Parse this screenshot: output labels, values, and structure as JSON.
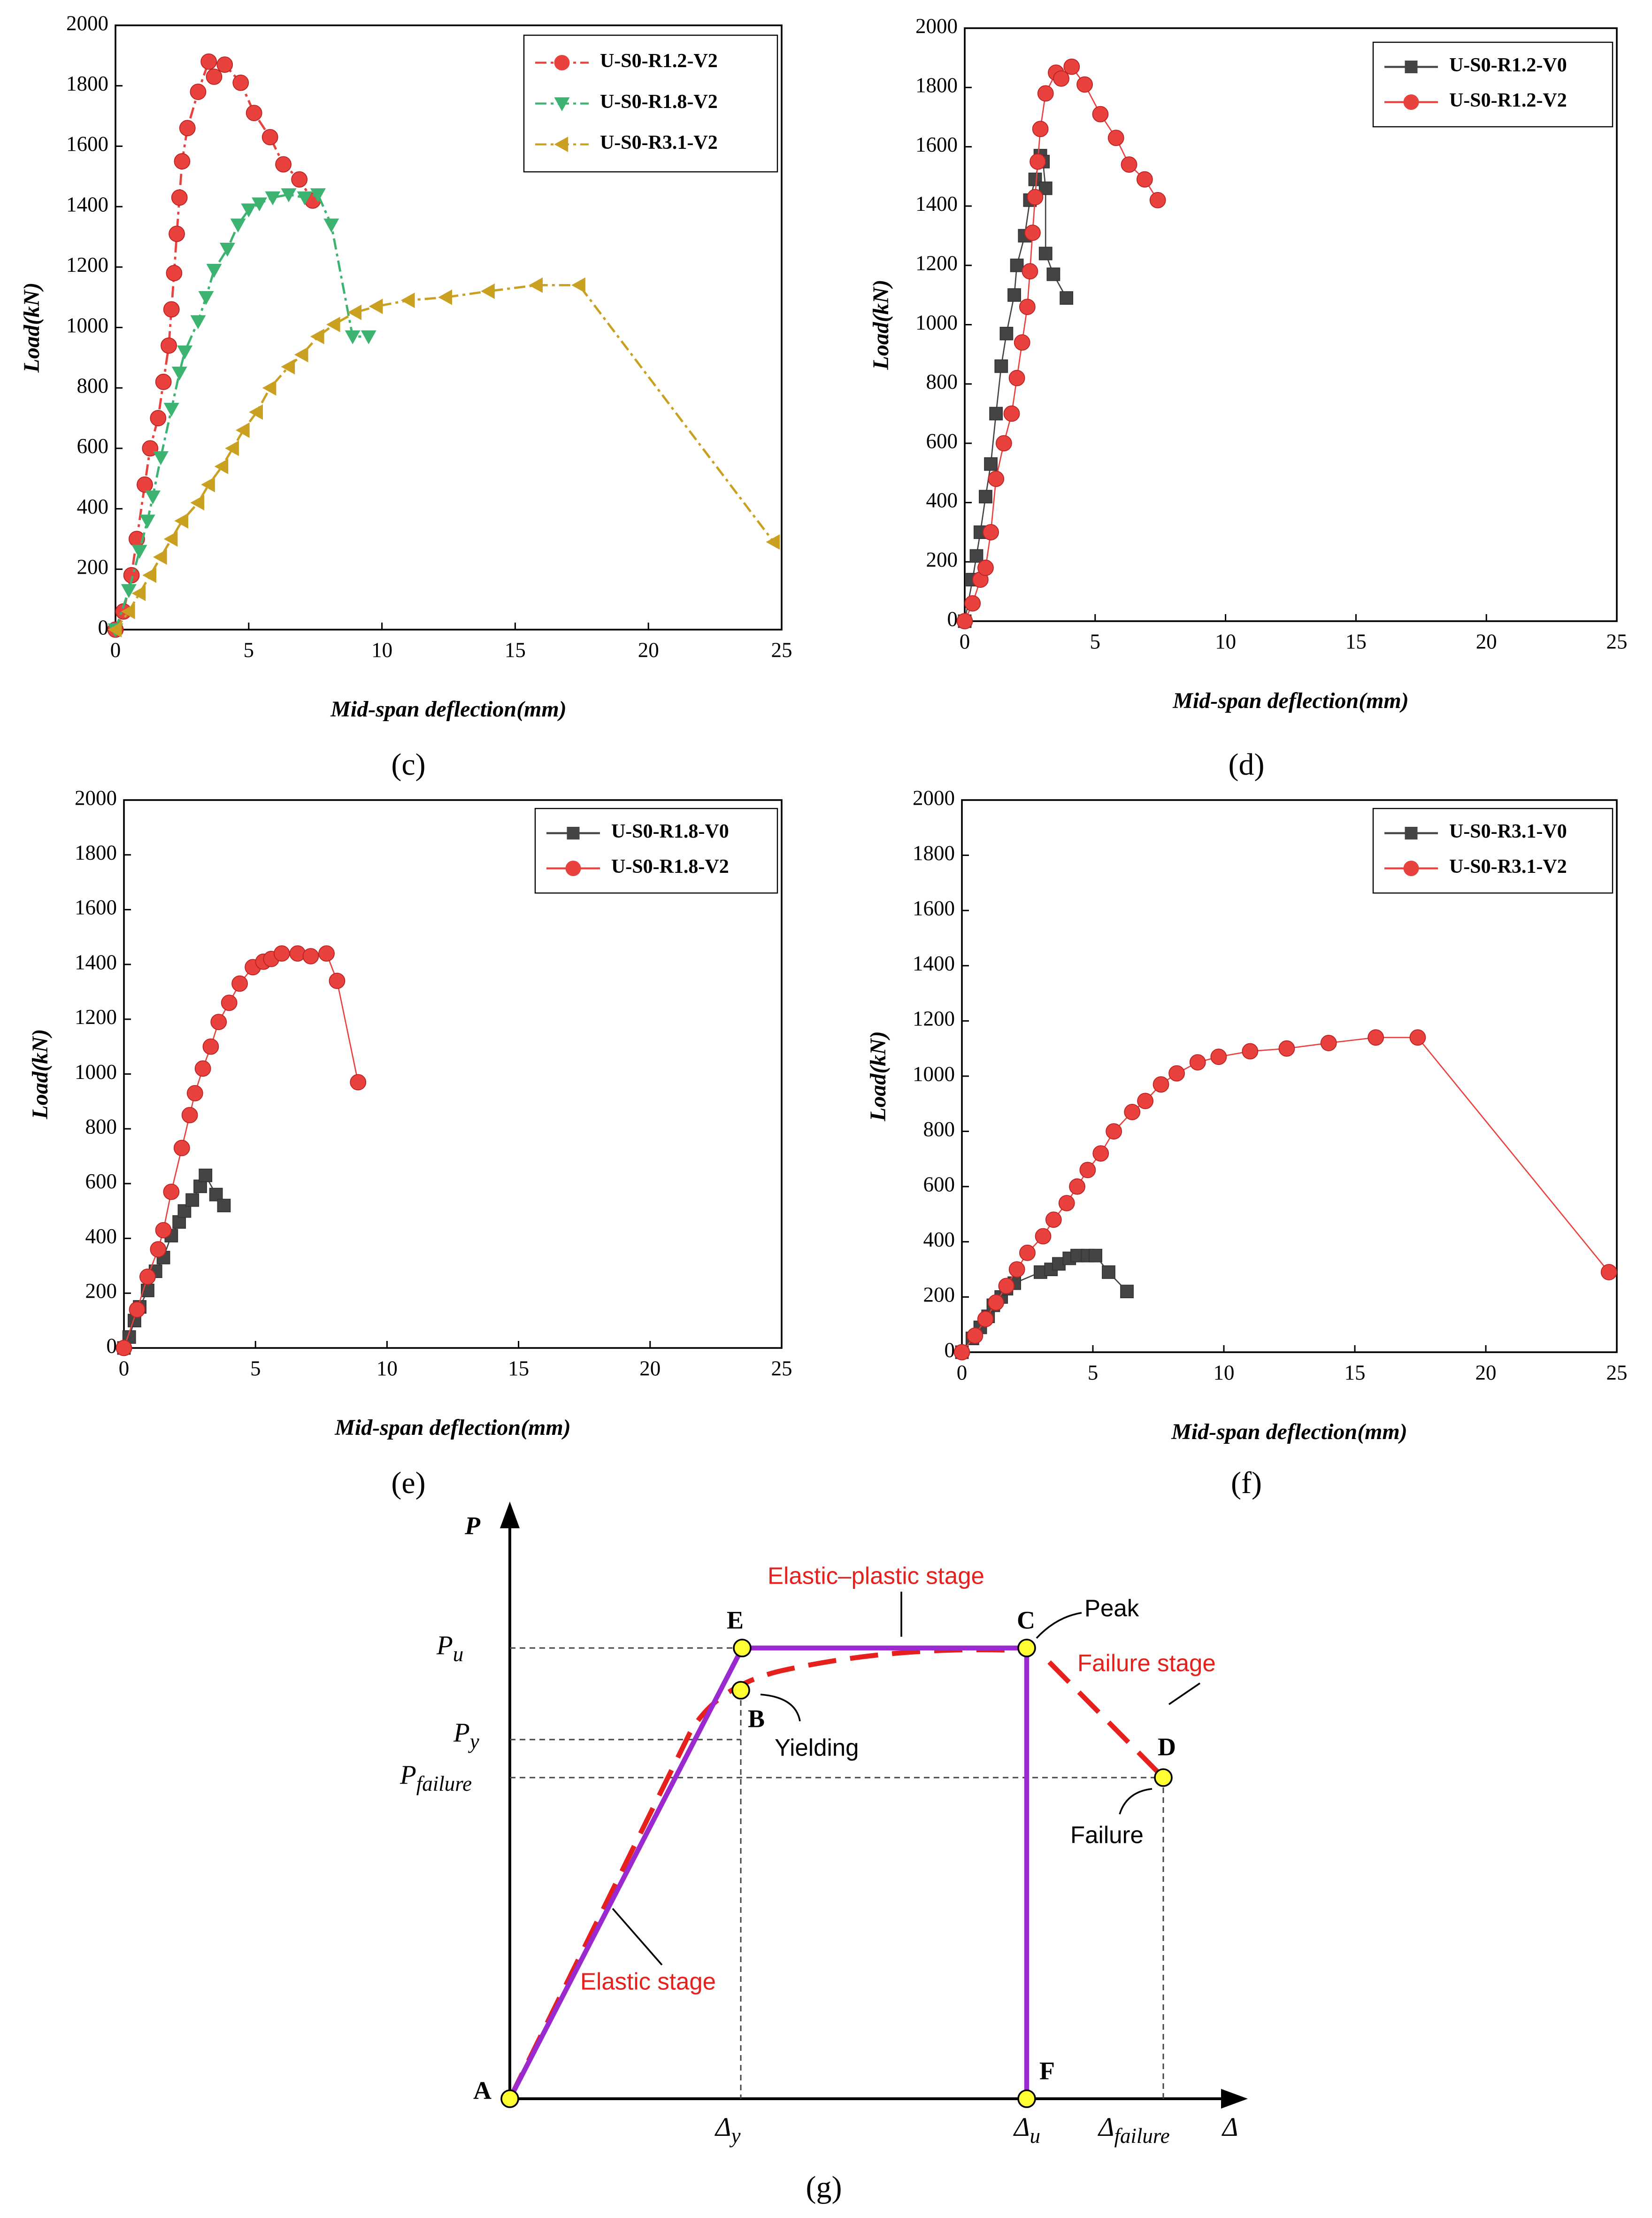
{
  "chart_data": [
    {
      "type": "line",
      "caption": "(c)",
      "xlabel": "Mid-span deflection(mm)",
      "ylabel": "Load(kN)",
      "xlim": [
        0,
        25
      ],
      "xticks": [
        0,
        5,
        10,
        15,
        20,
        25
      ],
      "ylim": [
        0,
        2000
      ],
      "yticks": [
        0,
        200,
        400,
        600,
        800,
        1000,
        1200,
        1400,
        1600,
        1800,
        2000
      ],
      "legend": "upper right",
      "series": [
        {
          "name": "U-S0-R1.2-V2",
          "color": "#e8413e",
          "marker": "circle",
          "linestyle": "dashed",
          "x": [
            0,
            0.3,
            0.6,
            0.8,
            1.1,
            1.3,
            1.6,
            1.8,
            2.0,
            2.1,
            2.2,
            2.3,
            2.4,
            2.5,
            2.7,
            3.1,
            3.5,
            3.7,
            4.1,
            4.7,
            5.2,
            5.8,
            6.3,
            6.9,
            7.4
          ],
          "values": [
            0,
            60,
            180,
            300,
            480,
            600,
            700,
            820,
            940,
            1060,
            1180,
            1310,
            1430,
            1550,
            1660,
            1780,
            1880,
            1830,
            1870,
            1810,
            1710,
            1630,
            1540,
            1490,
            1420
          ]
        },
        {
          "name": "U-S0-R1.8-V2",
          "color": "#3cb371",
          "marker": "triangle-down",
          "linestyle": "dashed",
          "x": [
            0,
            0.5,
            0.9,
            1.2,
            1.4,
            1.7,
            2.1,
            2.4,
            2.6,
            3.1,
            3.4,
            3.7,
            4.2,
            4.6,
            5.0,
            5.4,
            5.9,
            6.5,
            7.1,
            7.6,
            8.1,
            8.9,
            9.5
          ],
          "values": [
            0,
            130,
            260,
            360,
            440,
            570,
            730,
            850,
            920,
            1020,
            1100,
            1190,
            1260,
            1340,
            1390,
            1410,
            1430,
            1440,
            1430,
            1440,
            1340,
            970,
            970
          ]
        },
        {
          "name": "U-S0-R3.1-V2",
          "color": "#c9a020",
          "marker": "triangle-left",
          "linestyle": "dashed",
          "x": [
            0,
            0.5,
            0.9,
            1.3,
            1.7,
            2.1,
            2.5,
            3.1,
            3.5,
            4.0,
            4.4,
            4.8,
            5.3,
            5.8,
            6.5,
            7.0,
            7.6,
            8.2,
            9.0,
            9.8,
            11.0,
            12.4,
            14.0,
            15.8,
            17.4,
            24.7
          ],
          "values": [
            0,
            60,
            120,
            180,
            240,
            300,
            360,
            420,
            480,
            540,
            600,
            660,
            720,
            800,
            870,
            910,
            970,
            1010,
            1050,
            1070,
            1090,
            1100,
            1120,
            1140,
            1140,
            290
          ]
        }
      ]
    },
    {
      "type": "line",
      "caption": "(d)",
      "xlabel": "Mid-span deflection(mm)",
      "ylabel": "Load(kN)",
      "xlim": [
        0,
        25
      ],
      "xticks": [
        0,
        5,
        10,
        15,
        20,
        25
      ],
      "ylim": [
        0,
        2000
      ],
      "yticks": [
        0,
        200,
        400,
        600,
        800,
        1000,
        1200,
        1400,
        1600,
        1800,
        2000
      ],
      "legend": "upper right",
      "series": [
        {
          "name": "U-S0-R1.2-V0",
          "color": "#444444",
          "marker": "square",
          "linestyle": "solid",
          "x": [
            0,
            0.3,
            0.45,
            0.6,
            0.8,
            1.0,
            1.2,
            1.4,
            1.6,
            1.9,
            2.0,
            2.3,
            2.5,
            2.7,
            2.9,
            3.0,
            3.1,
            3.1,
            3.4,
            3.9
          ],
          "values": [
            0,
            140,
            220,
            300,
            420,
            530,
            700,
            860,
            970,
            1100,
            1200,
            1300,
            1420,
            1490,
            1570,
            1550,
            1460,
            1240,
            1170,
            1090
          ]
        },
        {
          "name": "U-S0-R1.2-V2",
          "color": "#e8413e",
          "marker": "circle",
          "linestyle": "solid",
          "x": [
            0,
            0.3,
            0.6,
            0.8,
            1.0,
            1.2,
            1.5,
            1.8,
            2.0,
            2.2,
            2.4,
            2.5,
            2.6,
            2.7,
            2.8,
            2.9,
            3.1,
            3.5,
            3.7,
            4.1,
            4.6,
            5.2,
            5.8,
            6.3,
            6.9,
            7.4
          ],
          "values": [
            0,
            60,
            140,
            180,
            300,
            480,
            600,
            700,
            820,
            940,
            1060,
            1180,
            1310,
            1430,
            1550,
            1660,
            1780,
            1850,
            1830,
            1870,
            1810,
            1710,
            1630,
            1540,
            1490,
            1420
          ]
        }
      ]
    },
    {
      "type": "line",
      "caption": "(e)",
      "xlabel": "Mid-span deflection(mm)",
      "ylabel": "Load(kN)",
      "xlim": [
        0,
        25
      ],
      "xticks": [
        0,
        5,
        10,
        15,
        20,
        25
      ],
      "ylim": [
        0,
        2000
      ],
      "yticks": [
        0,
        200,
        400,
        600,
        800,
        1000,
        1200,
        1400,
        1600,
        1800,
        2000
      ],
      "legend": "upper right",
      "series": [
        {
          "name": "U-S0-R1.8-V0",
          "color": "#444444",
          "marker": "square",
          "linestyle": "solid",
          "x": [
            0,
            0.2,
            0.4,
            0.6,
            0.9,
            1.2,
            1.5,
            1.8,
            2.1,
            2.3,
            2.6,
            2.9,
            3.1,
            3.5,
            3.8
          ],
          "values": [
            0,
            40,
            100,
            150,
            210,
            280,
            330,
            410,
            460,
            500,
            540,
            590,
            630,
            560,
            520
          ]
        },
        {
          "name": "U-S0-R1.8-V2",
          "color": "#e8413e",
          "marker": "circle",
          "linestyle": "solid",
          "x": [
            0,
            0.5,
            0.9,
            1.3,
            1.5,
            1.8,
            2.2,
            2.5,
            2.7,
            3.0,
            3.3,
            3.6,
            4.0,
            4.4,
            4.9,
            5.3,
            5.6,
            6.0,
            6.6,
            7.1,
            7.7,
            8.1,
            8.9
          ],
          "values": [
            0,
            140,
            260,
            360,
            430,
            570,
            730,
            850,
            930,
            1020,
            1100,
            1190,
            1260,
            1330,
            1390,
            1410,
            1420,
            1440,
            1440,
            1430,
            1440,
            1340,
            970
          ]
        }
      ]
    },
    {
      "type": "line",
      "caption": "(f)",
      "xlabel": "Mid-span deflection(mm)",
      "ylabel": "Load(kN)",
      "xlim": [
        0,
        25
      ],
      "xticks": [
        0,
        5,
        10,
        15,
        20,
        25
      ],
      "ylim": [
        0,
        2000
      ],
      "yticks": [
        0,
        200,
        400,
        600,
        800,
        1000,
        1200,
        1400,
        1600,
        1800,
        2000
      ],
      "legend": "upper right",
      "series": [
        {
          "name": "U-S0-R3.1-V0",
          "color": "#444444",
          "marker": "square",
          "linestyle": "solid",
          "x": [
            0,
            0.4,
            0.7,
            1.0,
            1.2,
            1.5,
            1.7,
            2.0,
            3.0,
            3.4,
            3.7,
            4.1,
            4.4,
            4.8,
            5.1,
            5.6,
            6.3
          ],
          "values": [
            0,
            50,
            90,
            130,
            170,
            200,
            230,
            250,
            290,
            300,
            320,
            340,
            350,
            350,
            350,
            290,
            220
          ]
        },
        {
          "name": "U-S0-R3.1-V2",
          "color": "#e8413e",
          "marker": "circle",
          "linestyle": "solid",
          "x": [
            0,
            0.5,
            0.9,
            1.3,
            1.7,
            2.1,
            2.5,
            3.1,
            3.5,
            4.0,
            4.4,
            4.8,
            5.3,
            5.8,
            6.5,
            7.0,
            7.6,
            8.2,
            9.0,
            9.8,
            11.0,
            12.4,
            14.0,
            15.8,
            17.4,
            24.7
          ],
          "values": [
            0,
            60,
            120,
            180,
            240,
            300,
            360,
            420,
            480,
            540,
            600,
            660,
            720,
            800,
            870,
            910,
            970,
            1010,
            1050,
            1070,
            1090,
            1100,
            1120,
            1140,
            1140,
            290
          ]
        }
      ]
    }
  ],
  "diagram": {
    "caption": "(g)",
    "axes": {
      "y": "P",
      "x": "Δ"
    },
    "levels": [
      {
        "base": "P",
        "sub": "u"
      },
      {
        "base": "P",
        "sub": "y"
      },
      {
        "base": "P",
        "sub": "failure"
      }
    ],
    "displacements": [
      {
        "base": "Δ",
        "sub": "y"
      },
      {
        "base": "Δ",
        "sub": "u"
      },
      {
        "base": "Δ",
        "sub": "failure"
      }
    ],
    "points": [
      "A",
      "B",
      "C",
      "D",
      "E",
      "F"
    ],
    "annotations": [
      "Peak",
      "Yielding",
      "Failure"
    ],
    "stages": [
      "Elastic–plastic stage",
      "Failure stage",
      "Elastic stage"
    ]
  }
}
